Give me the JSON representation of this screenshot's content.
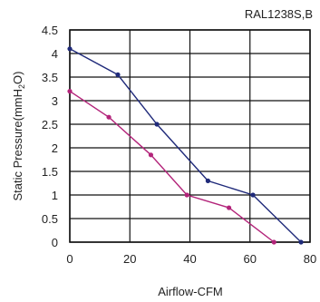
{
  "chart_data": {
    "type": "line",
    "title": "RAL1238S,B",
    "xlabel": "Airflow-CFM",
    "ylabel_parts": [
      "Static Pressure(mmH",
      "2",
      "O)"
    ],
    "xlim": [
      0,
      80
    ],
    "ylim": [
      0,
      4.5
    ],
    "x_ticks": [
      0,
      20,
      40,
      60,
      80
    ],
    "y_ticks": [
      0,
      0.5,
      1,
      1.5,
      2,
      2.5,
      3,
      3.5,
      4,
      4.5
    ],
    "x_tick_labels": [
      "0",
      "20",
      "40",
      "60",
      "80"
    ],
    "y_tick_labels": [
      "0",
      "0.5",
      "1",
      "1.5",
      "2",
      "2.5",
      "3",
      "3.5",
      "4",
      "4.5"
    ],
    "grid": true,
    "series": [
      {
        "color": "#1f2a7a",
        "points": [
          [
            0,
            4.1
          ],
          [
            16,
            3.55
          ],
          [
            29,
            2.5
          ],
          [
            46,
            1.3
          ],
          [
            61,
            1.0
          ],
          [
            77,
            0.0
          ]
        ]
      },
      {
        "color": "#b3247a",
        "points": [
          [
            0,
            3.2
          ],
          [
            13,
            2.65
          ],
          [
            27,
            1.85
          ],
          [
            39,
            1.0
          ],
          [
            53,
            0.73
          ],
          [
            68,
            0.0
          ]
        ]
      }
    ]
  }
}
